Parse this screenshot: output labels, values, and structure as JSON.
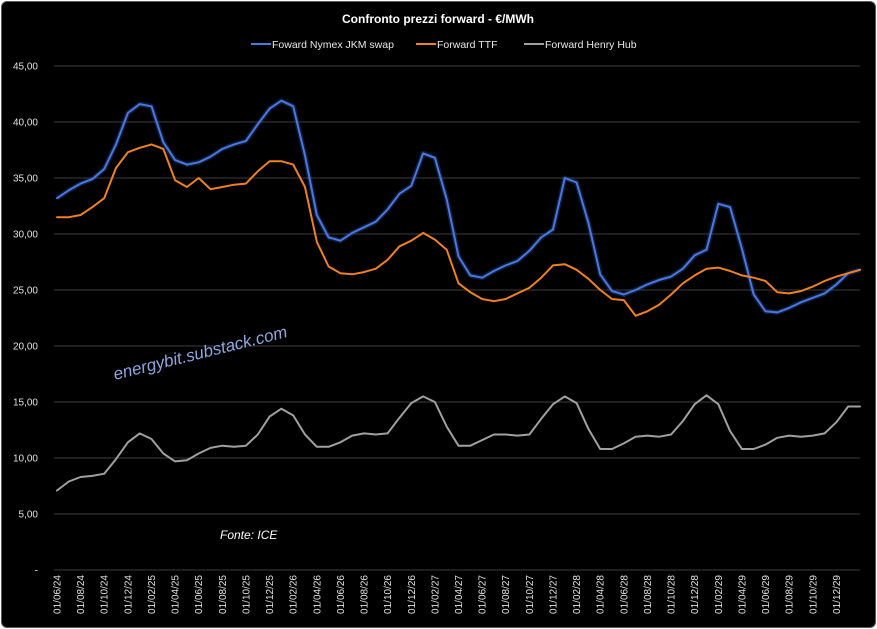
{
  "chart_data": {
    "type": "line",
    "title": "Confronto prezzi forward - €/MWh",
    "xlabel": "",
    "ylabel": "",
    "ylim": [
      0,
      45
    ],
    "y_ticks": [
      "-",
      "5,00",
      "10,00",
      "15,00",
      "20,00",
      "25,00",
      "30,00",
      "35,00",
      "40,00",
      "45,00"
    ],
    "x_tick_labels": [
      "01/06/24",
      "01/08/24",
      "01/10/24",
      "01/12/24",
      "01/02/25",
      "01/04/25",
      "01/06/25",
      "01/08/25",
      "01/10/25",
      "01/12/25",
      "01/02/26",
      "01/04/26",
      "01/06/26",
      "01/08/26",
      "01/10/26",
      "01/12/26",
      "01/02/27",
      "01/04/27",
      "01/06/27",
      "01/08/27",
      "01/10/27",
      "01/12/27",
      "01/02/28",
      "01/04/28",
      "01/06/28",
      "01/08/28",
      "01/10/28",
      "01/12/28",
      "01/02/29",
      "01/04/29",
      "01/06/29",
      "01/08/29",
      "01/10/29",
      "01/12/29"
    ],
    "grid": true,
    "legend": "top",
    "watermark": "energybit.substack.com",
    "source_note": "Fonte: ICE",
    "series": [
      {
        "name": "Foward Nymex JKM swap",
        "color": "#4a78e0",
        "values": [
          33.2,
          33.9,
          34.5,
          34.9,
          35.8,
          38.0,
          40.8,
          41.6,
          41.4,
          38.2,
          36.6,
          36.2,
          36.4,
          36.9,
          37.6,
          38.0,
          38.3,
          39.8,
          41.2,
          41.9,
          41.4,
          37.0,
          31.7,
          29.7,
          29.4,
          30.1,
          30.6,
          31.1,
          32.2,
          33.6,
          34.3,
          37.2,
          36.8,
          33.1,
          28.0,
          26.3,
          26.1,
          26.7,
          27.2,
          27.6,
          28.5,
          29.7,
          30.4,
          35.0,
          34.6,
          31.0,
          26.4,
          24.9,
          24.6,
          25.0,
          25.5,
          25.9,
          26.2,
          26.9,
          28.1,
          28.6,
          32.7,
          32.4,
          28.7,
          24.6,
          23.1,
          23.0,
          23.4,
          23.9,
          24.3,
          24.7,
          25.5,
          26.5,
          26.8
        ]
      },
      {
        "name": "Forward TTF",
        "color": "#f08020",
        "values": [
          31.5,
          31.5,
          31.7,
          32.4,
          33.2,
          35.9,
          37.3,
          37.7,
          38.0,
          37.6,
          34.8,
          34.2,
          35.0,
          34.0,
          34.2,
          34.4,
          34.5,
          35.6,
          36.5,
          36.5,
          36.2,
          34.2,
          29.3,
          27.1,
          26.5,
          26.4,
          26.6,
          26.9,
          27.7,
          28.9,
          29.4,
          30.1,
          29.5,
          28.6,
          25.6,
          24.8,
          24.2,
          24.0,
          24.2,
          24.7,
          25.2,
          26.1,
          27.2,
          27.3,
          26.8,
          26.0,
          25.0,
          24.2,
          24.1,
          22.7,
          23.1,
          23.7,
          24.6,
          25.6,
          26.3,
          26.9,
          27.0,
          26.7,
          26.3,
          26.1,
          25.8,
          24.8,
          24.7,
          24.9,
          25.3,
          25.8,
          26.2,
          26.5,
          26.8
        ]
      },
      {
        "name": "Forward Henry Hub",
        "color": "#a0a0a0",
        "values": [
          7.1,
          7.9,
          8.3,
          8.4,
          8.6,
          9.9,
          11.4,
          12.2,
          11.7,
          10.4,
          9.7,
          9.8,
          10.4,
          10.9,
          11.1,
          11.0,
          11.1,
          12.1,
          13.7,
          14.4,
          13.8,
          12.1,
          11.0,
          11.0,
          11.4,
          12.0,
          12.2,
          12.1,
          12.2,
          13.6,
          14.9,
          15.5,
          15.0,
          12.8,
          11.1,
          11.1,
          11.6,
          12.1,
          12.1,
          12.0,
          12.1,
          13.5,
          14.8,
          15.5,
          14.9,
          12.6,
          10.8,
          10.8,
          11.3,
          11.9,
          12.0,
          11.9,
          12.1,
          13.3,
          14.8,
          15.6,
          14.8,
          12.4,
          10.8,
          10.8,
          11.2,
          11.8,
          12.0,
          11.9,
          12.0,
          12.2,
          13.2,
          14.6,
          14.6
        ]
      }
    ]
  }
}
